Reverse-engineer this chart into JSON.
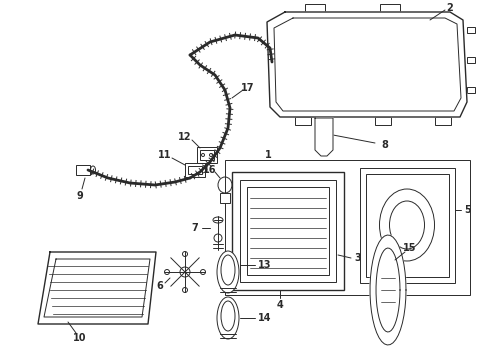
{
  "bg_color": "#ffffff",
  "line_color": "#2a2a2a",
  "lw_thin": 0.7,
  "lw_med": 1.0,
  "lw_thick": 1.3,
  "label_fontsize": 7.0,
  "fig_w": 4.9,
  "fig_h": 3.6,
  "dpi": 100
}
